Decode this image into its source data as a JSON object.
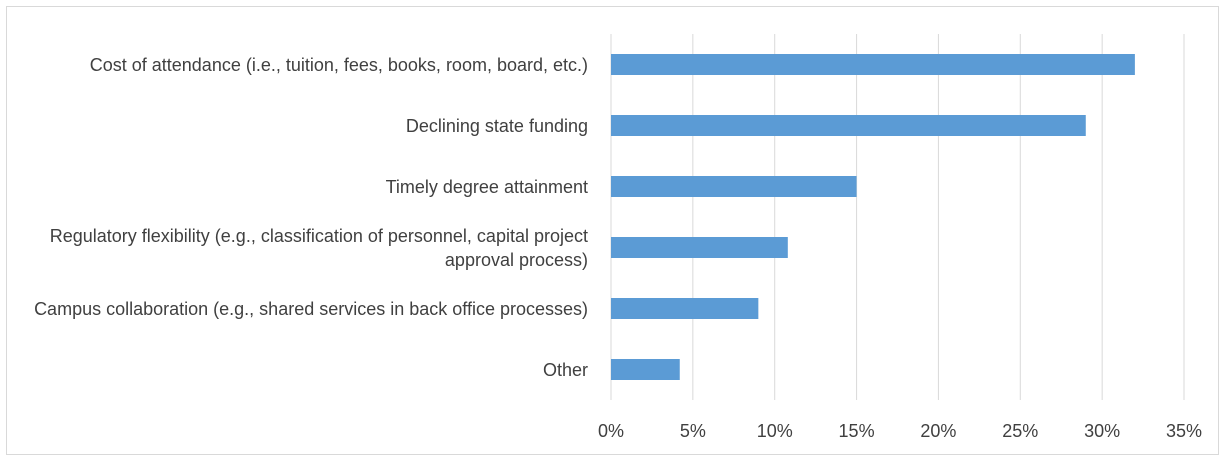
{
  "chart_data": {
    "type": "bar",
    "orientation": "horizontal",
    "categories": [
      "Cost of attendance (i.e., tuition, fees, books, room, board, etc.)",
      "Declining state funding",
      "Timely degree attainment",
      "Regulatory flexibility (e.g., classification of personnel, capital project approval process)",
      "Campus collaboration (e.g., shared services in back office processes)",
      "Other"
    ],
    "values": [
      32,
      29,
      15,
      10.8,
      9,
      4.2
    ],
    "color": "#5b9bd5",
    "xlim": [
      0,
      35
    ],
    "xticks": [
      {
        "value": 0,
        "label": "0%"
      },
      {
        "value": 5,
        "label": "5%"
      },
      {
        "value": 10,
        "label": "10%"
      },
      {
        "value": 15,
        "label": "15%"
      },
      {
        "value": 20,
        "label": "20%"
      },
      {
        "value": 25,
        "label": "25%"
      },
      {
        "value": 30,
        "label": "30%"
      },
      {
        "value": 35,
        "label": "35%"
      }
    ],
    "grid": true
  }
}
